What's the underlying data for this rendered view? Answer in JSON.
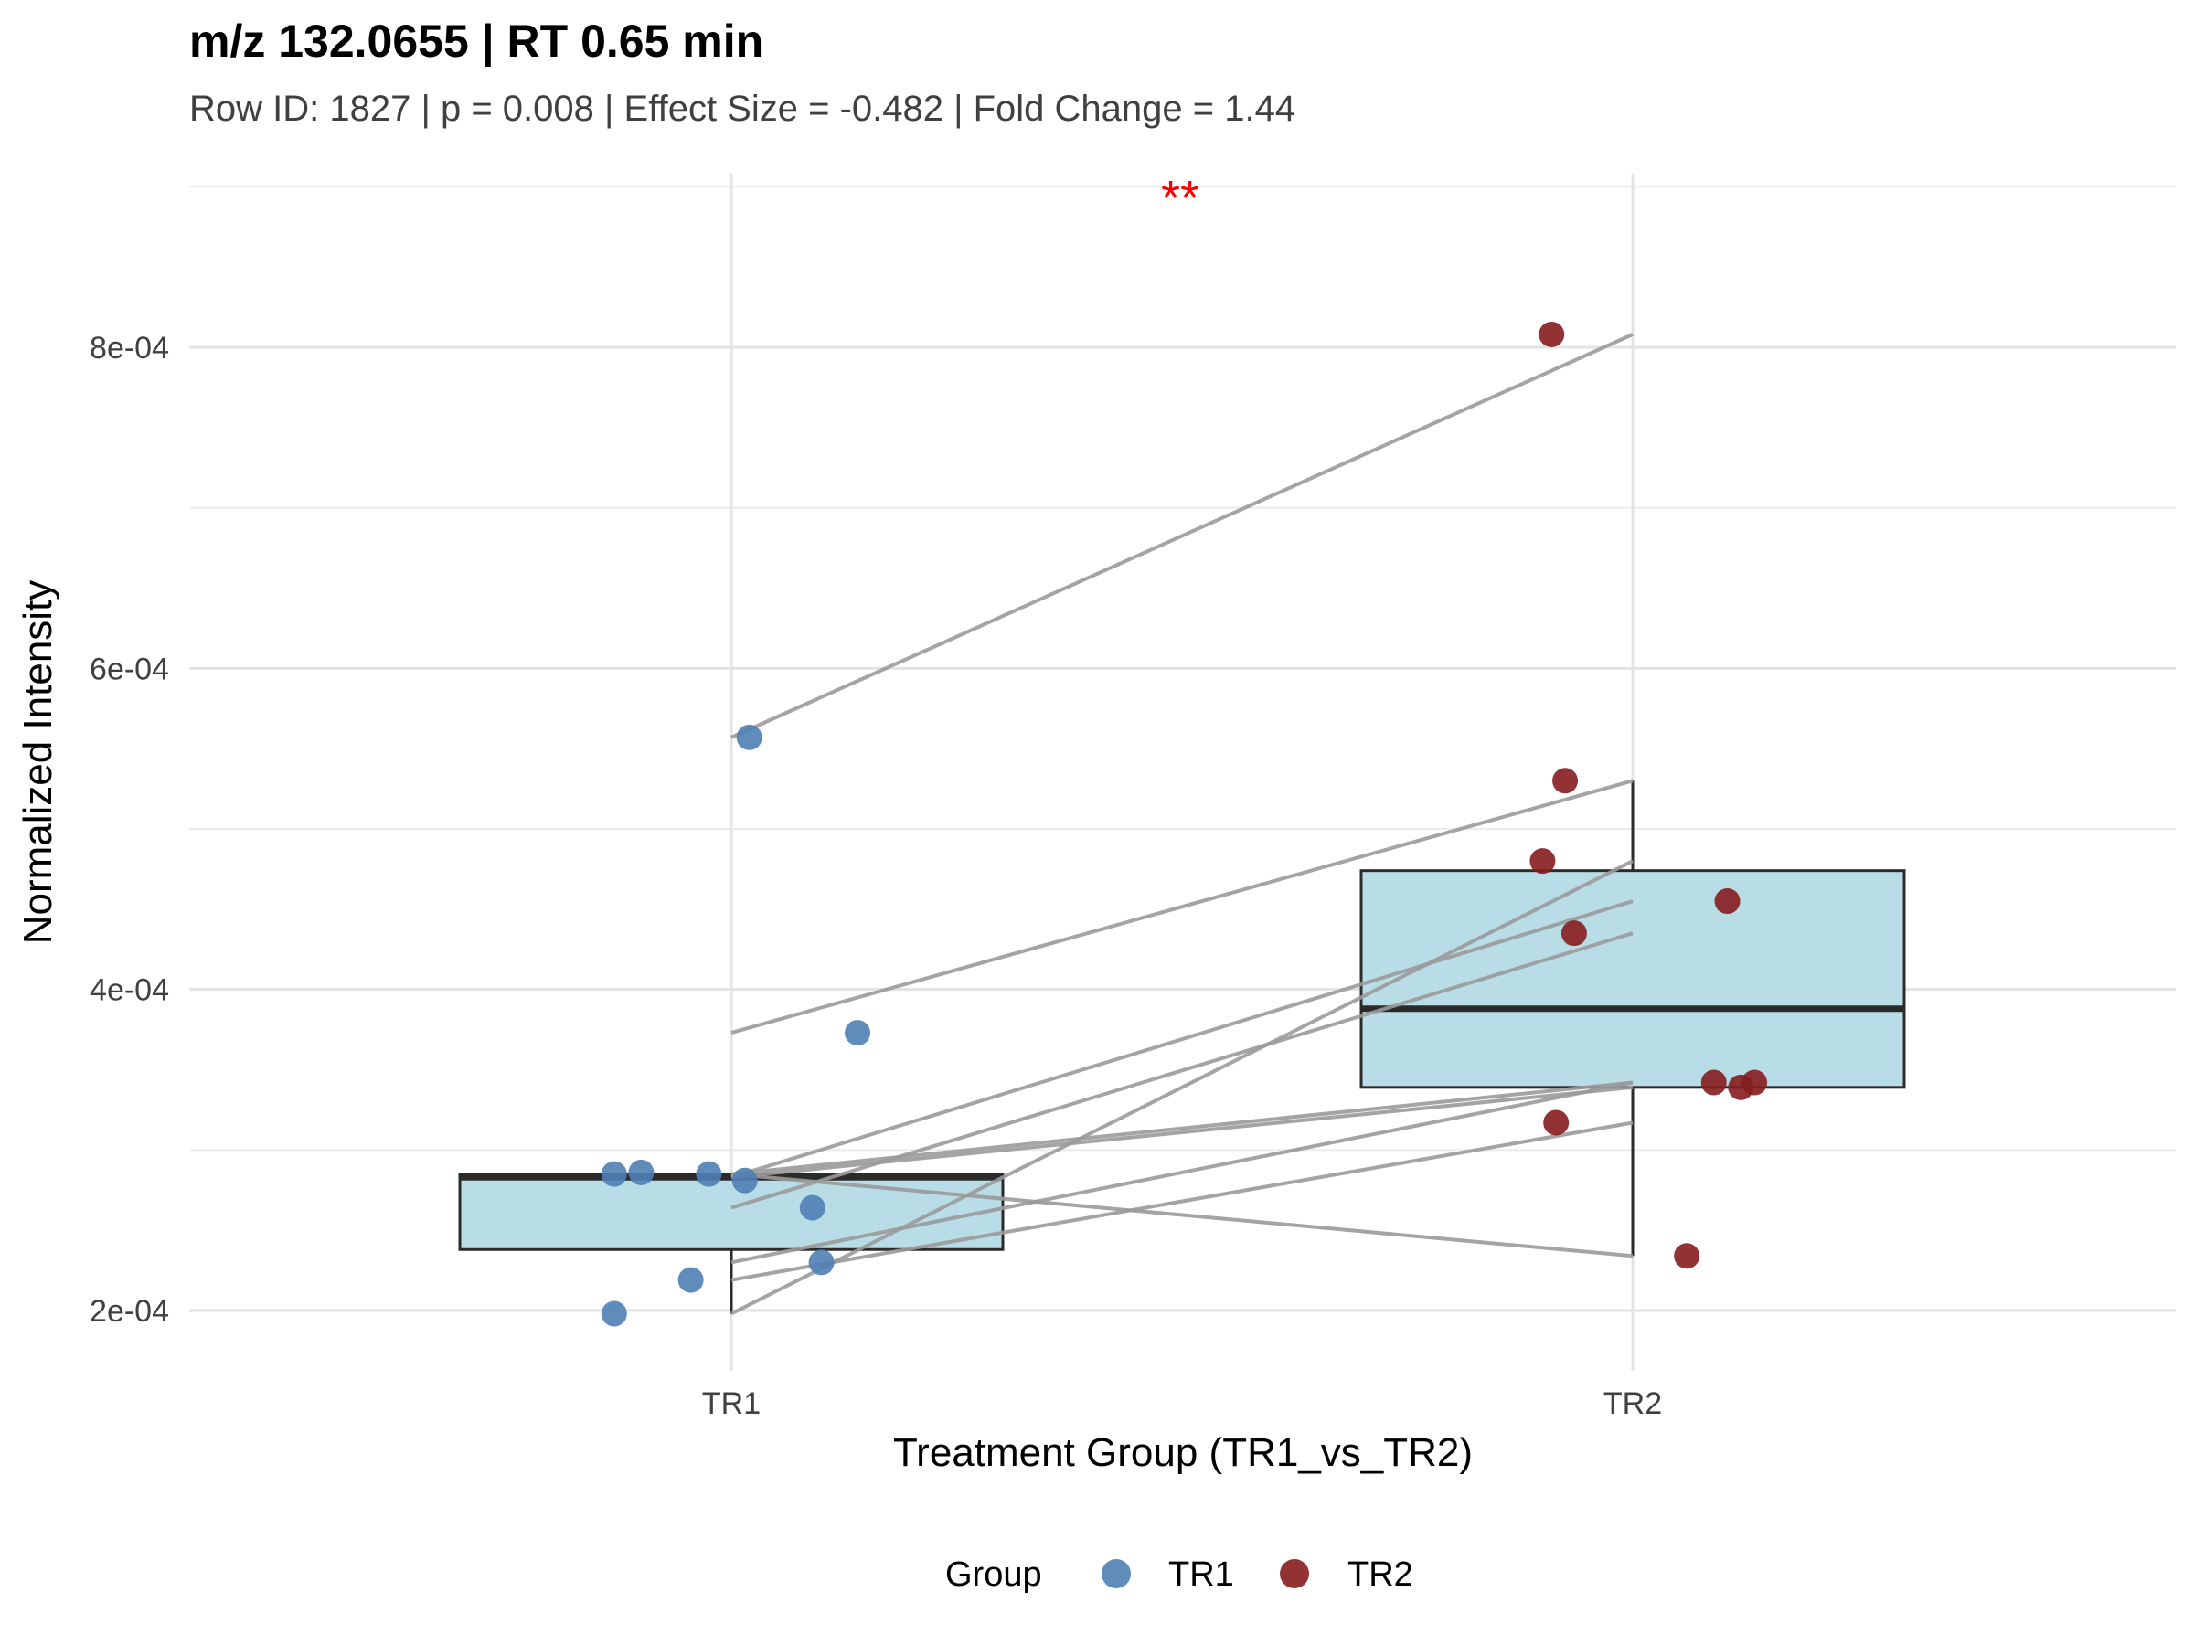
{
  "chart_data": {
    "type": "box",
    "title": "m/z 132.0655 | RT 0.65 min",
    "subtitle": "Row ID: 1827 | p = 0.008 | Effect Size = -0.482 | Fold Change = 1.44",
    "xlabel": "Treatment Group (TR1_vs_TR2)",
    "ylabel": "Normalized Intensity",
    "categories": [
      "TR1",
      "TR2"
    ],
    "yticks": [
      "2e-04",
      "4e-04",
      "6e-04",
      "8e-04"
    ],
    "ytick_values": [
      0.0002,
      0.0004,
      0.0006,
      0.0008
    ],
    "ylim": [
      0.00016,
      0.0009
    ],
    "grid": true,
    "significance_label": "**",
    "legend": {
      "title": "Group",
      "position": "bottom",
      "entries": [
        {
          "label": "TR1",
          "color": "#4f7fb5"
        },
        {
          "label": "TR2",
          "color": "#861c1f"
        }
      ]
    },
    "box_fill": "#b9dde7",
    "line_color": "#9a9a9a",
    "boxes": [
      {
        "group": "TR1",
        "min": 0.000198,
        "q1": 0.000238,
        "median": 0.000283,
        "q3": 0.000285,
        "max": 0.000285
      },
      {
        "group": "TR2",
        "min": 0.000234,
        "q1": 0.000339,
        "median": 0.000388,
        "q3": 0.000474,
        "max": 0.00053
      }
    ],
    "pairs": [
      {
        "tr1": 0.000557,
        "tr2": 0.000808
      },
      {
        "tr1": 0.000373,
        "tr2": 0.00053
      },
      {
        "tr1": 0.000198,
        "tr2": 0.00048
      },
      {
        "tr1": 0.000283,
        "tr2": 0.000455
      },
      {
        "tr1": 0.000264,
        "tr2": 0.000435
      },
      {
        "tr1": 0.000285,
        "tr2": 0.000342
      },
      {
        "tr1": 0.000283,
        "tr2": 0.000339
      },
      {
        "tr1": 0.00023,
        "tr2": 0.000342
      },
      {
        "tr1": 0.000219,
        "tr2": 0.000317
      },
      {
        "tr1": 0.000285,
        "tr2": 0.000234
      }
    ],
    "points": {
      "TR1": [
        {
          "jitter": 0.02,
          "y": 0.000557
        },
        {
          "jitter": 0.14,
          "y": 0.000373
        },
        {
          "jitter": -0.13,
          "y": 0.000285
        },
        {
          "jitter": -0.1,
          "y": 0.000286
        },
        {
          "jitter": -0.025,
          "y": 0.000285
        },
        {
          "jitter": 0.015,
          "y": 0.000281
        },
        {
          "jitter": 0.09,
          "y": 0.000264
        },
        {
          "jitter": 0.1,
          "y": 0.00023
        },
        {
          "jitter": -0.045,
          "y": 0.000219
        },
        {
          "jitter": -0.13,
          "y": 0.000198
        }
      ],
      "TR2": [
        {
          "jitter": -0.09,
          "y": 0.000808
        },
        {
          "jitter": -0.075,
          "y": 0.00053
        },
        {
          "jitter": -0.1,
          "y": 0.00048
        },
        {
          "jitter": 0.105,
          "y": 0.000455
        },
        {
          "jitter": -0.065,
          "y": 0.000435
        },
        {
          "jitter": 0.09,
          "y": 0.000342
        },
        {
          "jitter": 0.12,
          "y": 0.000339
        },
        {
          "jitter": 0.135,
          "y": 0.000342
        },
        {
          "jitter": -0.085,
          "y": 0.000317
        },
        {
          "jitter": 0.06,
          "y": 0.000234
        }
      ]
    }
  }
}
